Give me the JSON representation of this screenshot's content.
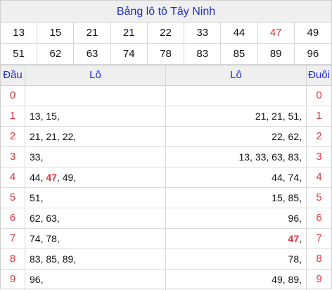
{
  "title": "Bảng lô tô Tây Ninh",
  "numbers_row1": [
    "13",
    "15",
    "21",
    "21",
    "22",
    "33",
    "44",
    "47",
    "49"
  ],
  "numbers_row2": [
    "51",
    "62",
    "63",
    "74",
    "78",
    "83",
    "85",
    "89",
    "96"
  ],
  "highlight_number": "47",
  "highlight_color": "#e0353d",
  "accent_color": "#1d2bd6",
  "header": {
    "dau": "Đầu",
    "lo_left": "Lô",
    "lo_right": "Lô",
    "duoi": "Đuôi"
  },
  "rows": [
    {
      "head": "0",
      "left": "",
      "right": "",
      "tail": "0"
    },
    {
      "head": "1",
      "left": "13, 15,",
      "right": "21, 21, 51,",
      "tail": "1"
    },
    {
      "head": "2",
      "left": "21, 21, 22,",
      "right": "22, 62,",
      "tail": "2"
    },
    {
      "head": "3",
      "left": "33,",
      "right": "13, 33, 63, 83,",
      "tail": "3"
    },
    {
      "head": "4",
      "left": "44, 47, 49,",
      "right": "44, 74,",
      "tail": "4"
    },
    {
      "head": "5",
      "left": "51,",
      "right": "15, 85,",
      "tail": "5"
    },
    {
      "head": "6",
      "left": "62, 63,",
      "right": "96,",
      "tail": "6"
    },
    {
      "head": "7",
      "left": "74, 78,",
      "right": "47,",
      "tail": "7"
    },
    {
      "head": "8",
      "left": "83, 85, 89,",
      "right": "78,",
      "tail": "8"
    },
    {
      "head": "9",
      "left": "96,",
      "right": "49, 89,",
      "tail": "9"
    }
  ]
}
